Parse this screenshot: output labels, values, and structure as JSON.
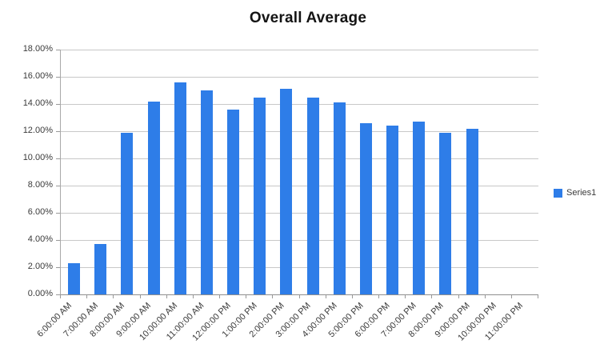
{
  "chart_data": {
    "type": "bar",
    "title": "Overall Average",
    "categories": [
      "6:00:00 AM",
      "7:00:00 AM",
      "8:00:00 AM",
      "9:00:00 AM",
      "10:00:00 AM",
      "11:00:00 AM",
      "12:00:00 PM",
      "1:00:00 PM",
      "2:00:00 PM",
      "3:00:00 PM",
      "4:00:00 PM",
      "5:00:00 PM",
      "6:00:00 PM",
      "7:00:00 PM",
      "8:00:00 PM",
      "9:00:00 PM",
      "10:00:00 PM",
      "11:00:00 PM"
    ],
    "series": [
      {
        "name": "Series1",
        "values": [
          2.3,
          3.7,
          11.9,
          14.2,
          15.6,
          15.0,
          13.6,
          14.5,
          15.1,
          14.5,
          14.1,
          12.6,
          12.4,
          12.7,
          11.9,
          12.2,
          0,
          0
        ]
      }
    ],
    "value_unit": "%",
    "xlabel": "",
    "ylabel": "",
    "ylim": [
      0,
      18
    ],
    "ytick_step": 2,
    "ytick_labels": [
      "0.00%",
      "2.00%",
      "4.00%",
      "6.00%",
      "8.00%",
      "10.00%",
      "12.00%",
      "14.00%",
      "16.00%",
      "18.00%"
    ],
    "grid": true,
    "legend_position": "right",
    "colors": {
      "bar": "#2e7de8",
      "gridline": "#c8c8c8",
      "axis": "#9a9a9a",
      "label_text": "#3a3a3a",
      "title_text": "#141414",
      "background": "#ffffff"
    }
  }
}
